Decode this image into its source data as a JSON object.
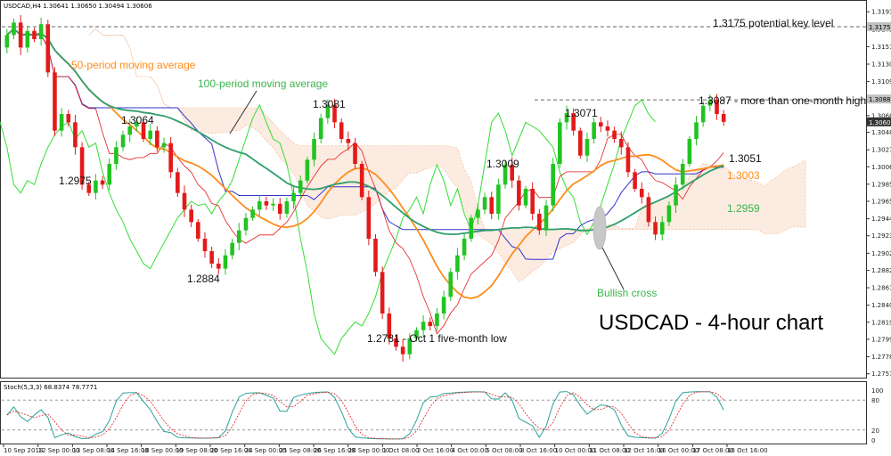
{
  "header": {
    "main": "USDCAD,H4  1.30641 1.30650 1.30494 1.30606",
    "stoch": "Stoch(5,3,3) 68.8374 78.7771"
  },
  "chart_data": {
    "type": "candlestick",
    "title": "USDCAD - 4-hour chart",
    "ylim": [
      1.2755,
      1.3205
    ],
    "y_ticks": [
      "1.31930",
      "1.31720",
      "1.31510",
      "1.31300",
      "1.31090",
      "1.30880",
      "1.30680",
      "1.30480",
      "1.30270",
      "1.30065",
      "1.29855",
      "1.29650",
      "1.29440",
      "1.29235",
      "1.29025",
      "1.28820",
      "1.28610",
      "1.28400",
      "1.28195",
      "1.27990",
      "1.27780",
      "1.27575"
    ],
    "price_tags": {
      "dark": "1.30606",
      "grey_top": "1.31750",
      "grey_mid": "1.30880"
    },
    "x_ticks": [
      "10 Sep 2018",
      "12 Sep 00:00",
      "13 Sep 08:00",
      "14 Sep 16:00",
      "18 Sep 00:00",
      "19 Sep 08:00",
      "20 Sep 16:00",
      "24 Sep 00:00",
      "25 Sep 08:00",
      "26 Sep 16:00",
      "28 Sep 00:00",
      "1 Oct 08:00",
      "2 Oct 16:00",
      "4 Oct 00:00",
      "5 Oct 08:00",
      "8 Oct 16:00",
      "10 Oct 00:00",
      "11 Oct 08:00",
      "12 Oct 16:00",
      "16 Oct 00:00",
      "17 Oct 08:00",
      "18 Oct 16:00"
    ],
    "closes": [
      1.3165,
      1.318,
      1.315,
      1.317,
      1.316,
      1.3178,
      1.312,
      1.305,
      1.307,
      1.306,
      1.303,
      1.2985,
      1.2975,
      1.299,
      1.2985,
      1.301,
      1.303,
      1.3045,
      1.3055,
      1.306,
      1.304,
      1.305,
      1.303,
      1.3035,
      1.3,
      1.2975,
      1.2955,
      1.294,
      1.292,
      1.2905,
      1.289,
      1.2884,
      1.29,
      1.2915,
      1.293,
      1.2945,
      1.2955,
      1.2965,
      1.296,
      1.2962,
      1.295,
      1.2965,
      1.2975,
      1.299,
      1.3015,
      1.304,
      1.3065,
      1.3081,
      1.306,
      1.304,
      1.3035,
      1.301,
      1.297,
      1.292,
      1.288,
      1.283,
      1.28,
      1.279,
      1.2781,
      1.28,
      1.281,
      1.282,
      1.2815,
      1.283,
      1.285,
      1.288,
      1.29,
      1.292,
      1.2945,
      1.2955,
      1.297,
      1.295,
      1.2985,
      1.3009,
      1.299,
      1.296,
      1.298,
      1.295,
      1.293,
      1.296,
      1.301,
      1.306,
      1.3071,
      1.305,
      1.302,
      1.304,
      1.306,
      1.3055,
      1.305,
      1.304,
      1.303,
      1.3,
      1.298,
      1.297,
      1.294,
      1.2925,
      1.294,
      1.296,
      1.2985,
      1.301,
      1.304,
      1.306,
      1.308,
      1.3087,
      1.307,
      1.30606
    ],
    "levels": [
      {
        "label": "1.3175 potential key level",
        "value": 1.3175
      },
      {
        "label": "1.3087 - more than one-month high",
        "value": 1.3087
      }
    ],
    "annotations": [
      {
        "text": "1.2975"
      },
      {
        "text": "1.3064"
      },
      {
        "text": "1.2884"
      },
      {
        "text": "1.3081"
      },
      {
        "text": "1.2781 - Oct 1 five-month low"
      },
      {
        "text": "1.3009"
      },
      {
        "text": "1.3071"
      },
      {
        "text": "1.3051"
      },
      {
        "text": "1.3003"
      },
      {
        "text": "1.2959"
      }
    ],
    "indicators": [
      {
        "name": "50-period moving average",
        "color": "#ff8c1a"
      },
      {
        "name": "100-period moving average",
        "color": "#2e9e6a"
      }
    ],
    "callout": "Bullish cross",
    "stoch_levels": [
      "100",
      "80",
      "20",
      "0"
    ],
    "colors": {
      "bull": "#22c322",
      "bear": "#e31a1a",
      "ma50": "#ff8c1a",
      "ma100": "#2e9e6a",
      "kijun": "#3333cc",
      "tenkan": "#e31a1a",
      "chikou": "#33dd33",
      "cloud": "#f4b183"
    }
  }
}
